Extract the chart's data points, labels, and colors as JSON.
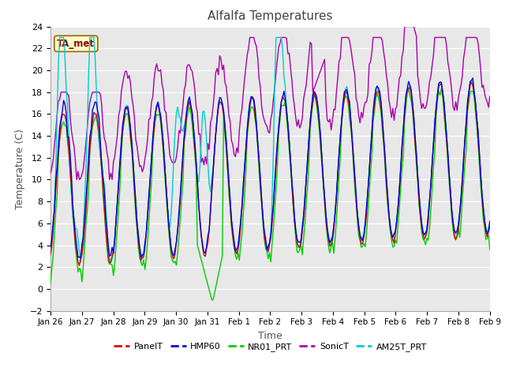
{
  "title": "Alfalfa Temperatures",
  "xlabel": "Time",
  "ylabel": "Temperature (C)",
  "ylim": [
    -2,
    24
  ],
  "annotation": "TA_met",
  "fig_bg": "#ffffff",
  "plot_bg": "#e8e8e8",
  "grid_color": "#ffffff",
  "series_colors": {
    "PanelT": "#dd0000",
    "HMP60": "#0000dd",
    "NR01_PRT": "#00cc00",
    "SonicT": "#aa00aa",
    "AM25T_PRT": "#00cccc"
  },
  "x_tick_labels": [
    "Jan 26",
    "Jan 27",
    "Jan 28",
    "Jan 29",
    "Jan 30",
    "Jan 31",
    "Feb 1",
    "Feb 2",
    "Feb 3",
    "Feb 4",
    "Feb 5",
    "Feb 6",
    "Feb 7",
    "Feb 8",
    "Feb 9"
  ],
  "legend_labels": [
    "PanelT",
    "HMP60",
    "NR01_PRT",
    "SonicT",
    "AM25T_PRT"
  ],
  "n_points": 336,
  "total_hours": 336
}
